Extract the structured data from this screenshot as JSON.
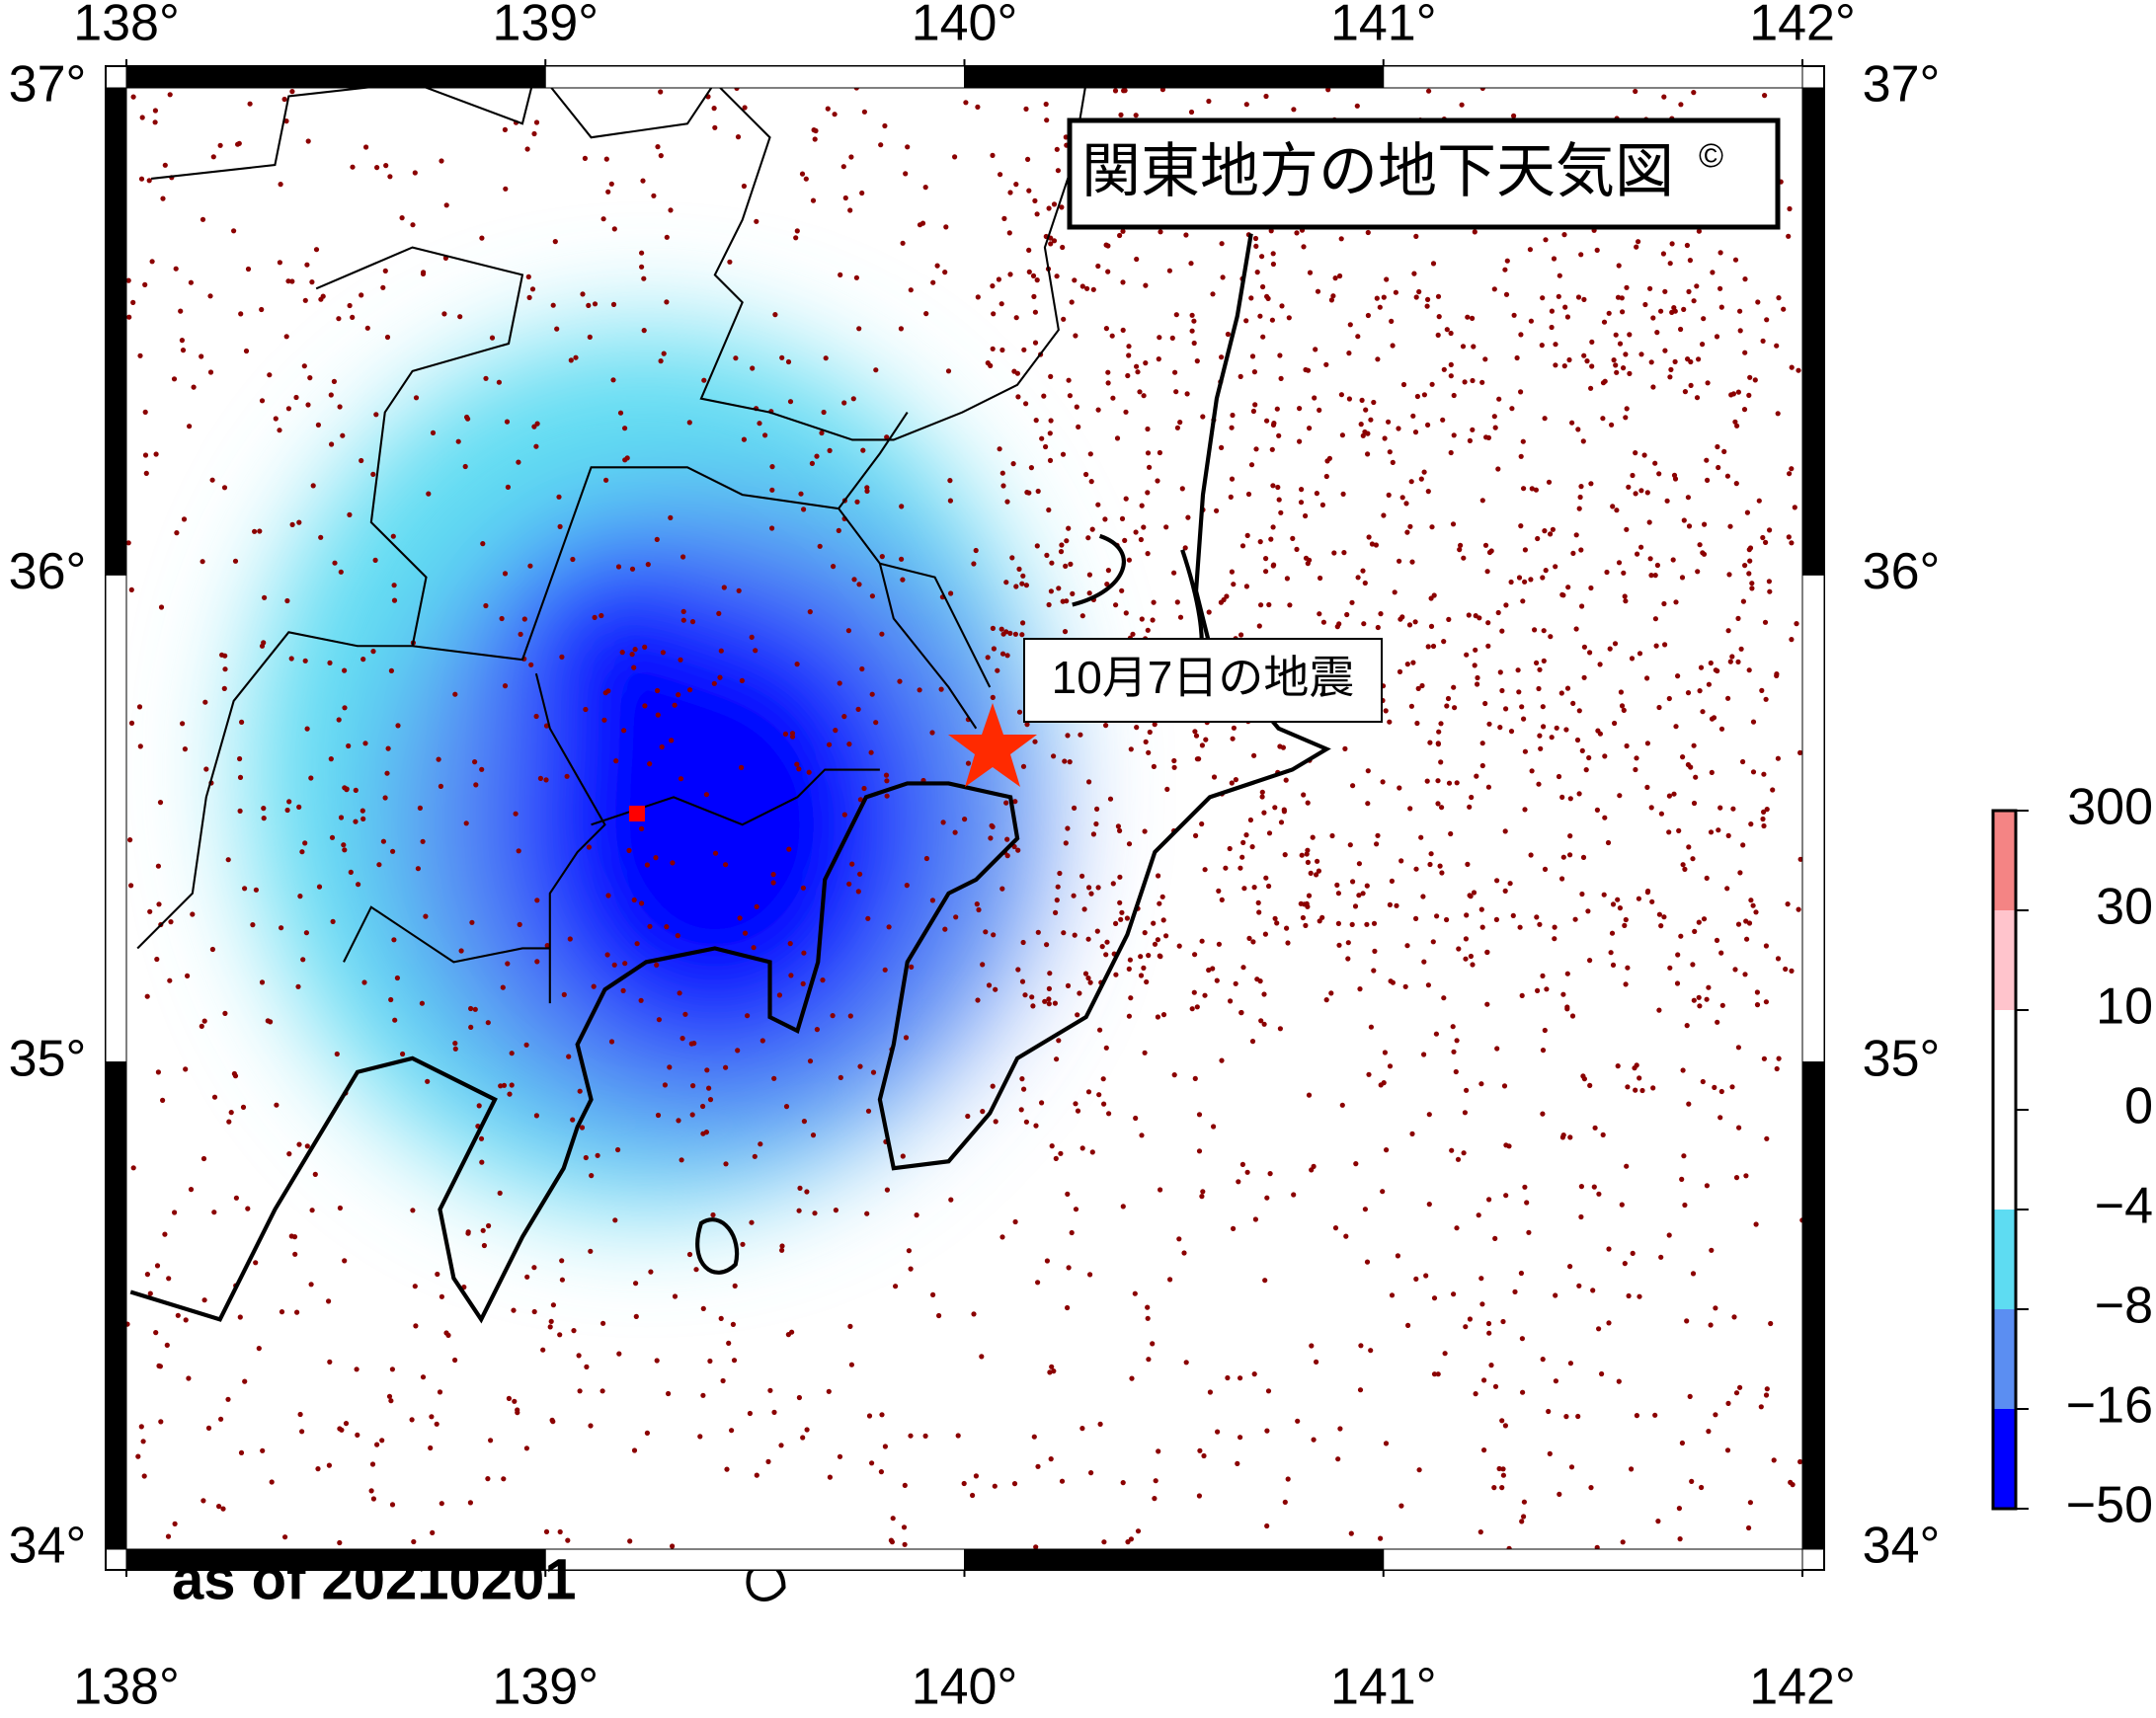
{
  "map": {
    "title": "関東地方の地下天気図",
    "copyright": "©",
    "annotation": "10月7日の地震",
    "as_of": "as of 20210201",
    "lon_ticks": [
      {
        "value": 138,
        "label": "138°"
      },
      {
        "value": 139,
        "label": "139°"
      },
      {
        "value": 140,
        "label": "140°"
      },
      {
        "value": 141,
        "label": "141°"
      },
      {
        "value": 142,
        "label": "142°"
      }
    ],
    "lat_ticks": [
      {
        "value": 37,
        "label": "37°"
      },
      {
        "value": 36,
        "label": "36°"
      },
      {
        "value": 35,
        "label": "35°"
      },
      {
        "value": 34,
        "label": "34°"
      }
    ],
    "colorbar": {
      "ticks": [
        300,
        30,
        10,
        0,
        {
          "value": -4,
          "label": "−4"
        },
        {
          "value": -8,
          "label": "−8"
        },
        {
          "value": -16,
          "label": "−16"
        },
        {
          "value": -50,
          "label": "−50"
        }
      ],
      "colors": [
        "#f48484",
        "#ffc4cc",
        "#ffffff",
        "#ffffff",
        "#5edcf2",
        "#5b8ef2",
        "#0000ff"
      ]
    }
  }
}
